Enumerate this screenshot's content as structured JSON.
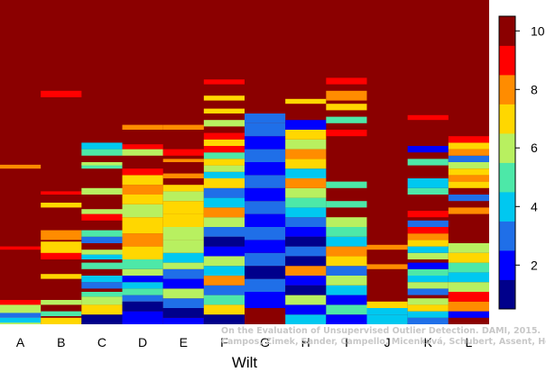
{
  "chart_data": {
    "type": "heatmap",
    "xlabel": "Wilt",
    "categories": [
      "A",
      "B",
      "C",
      "D",
      "E",
      "F",
      "G",
      "H",
      "I",
      "J",
      "K",
      "L"
    ],
    "colorbar": {
      "range": [
        0.5,
        10.5
      ],
      "ticks": [
        "2",
        "4",
        "6",
        "8",
        "10"
      ],
      "colors": [
        "#00008b",
        "#0000ff",
        "#1f6fe8",
        "#00c8f0",
        "#4de8a8",
        "#b8f060",
        "#ffd700",
        "#ff8c00",
        "#ff0000",
        "#8b0000"
      ]
    },
    "columns": [
      {
        "x": "A",
        "bands": [
          [
            0.0,
            0.07,
            6
          ],
          [
            0.005,
            0.02,
            4
          ],
          [
            0.02,
            0.035,
            3
          ],
          [
            0.06,
            0.075,
            9
          ],
          [
            0.23,
            0.24,
            9
          ],
          [
            0.48,
            0.492,
            8
          ]
        ]
      },
      {
        "x": "B",
        "bands": [
          [
            0.0,
            0.02,
            7
          ],
          [
            0.025,
            0.04,
            5
          ],
          [
            0.06,
            0.075,
            6
          ],
          [
            0.14,
            0.155,
            7
          ],
          [
            0.2,
            0.225,
            9
          ],
          [
            0.22,
            0.255,
            7
          ],
          [
            0.26,
            0.29,
            8
          ],
          [
            0.36,
            0.375,
            7
          ],
          [
            0.4,
            0.41,
            9
          ],
          [
            0.7,
            0.72,
            9
          ]
        ]
      },
      {
        "x": "C",
        "bands": [
          [
            0.0,
            0.03,
            1
          ],
          [
            0.03,
            0.06,
            7
          ],
          [
            0.06,
            0.085,
            6
          ],
          [
            0.085,
            0.1,
            5
          ],
          [
            0.11,
            0.13,
            3
          ],
          [
            0.13,
            0.15,
            4
          ],
          [
            0.17,
            0.19,
            5
          ],
          [
            0.2,
            0.215,
            4
          ],
          [
            0.215,
            0.23,
            6
          ],
          [
            0.25,
            0.27,
            3
          ],
          [
            0.27,
            0.29,
            5
          ],
          [
            0.32,
            0.34,
            9
          ],
          [
            0.34,
            0.355,
            6
          ],
          [
            0.4,
            0.42,
            6
          ],
          [
            0.48,
            0.495,
            5
          ],
          [
            0.49,
            0.5,
            6
          ],
          [
            0.52,
            0.54,
            5
          ],
          [
            0.54,
            0.56,
            4
          ]
        ]
      },
      {
        "x": "D",
        "bands": [
          [
            0.0,
            0.04,
            2
          ],
          [
            0.04,
            0.07,
            1
          ],
          [
            0.07,
            0.09,
            3
          ],
          [
            0.09,
            0.11,
            5
          ],
          [
            0.11,
            0.13,
            4
          ],
          [
            0.13,
            0.15,
            2
          ],
          [
            0.15,
            0.17,
            6
          ],
          [
            0.17,
            0.2,
            5
          ],
          [
            0.2,
            0.24,
            7
          ],
          [
            0.24,
            0.28,
            8
          ],
          [
            0.28,
            0.33,
            7
          ],
          [
            0.33,
            0.37,
            6
          ],
          [
            0.37,
            0.4,
            7
          ],
          [
            0.4,
            0.43,
            8
          ],
          [
            0.43,
            0.46,
            7
          ],
          [
            0.46,
            0.48,
            9
          ],
          [
            0.52,
            0.54,
            6
          ],
          [
            0.54,
            0.555,
            9
          ],
          [
            0.6,
            0.615,
            8
          ]
        ]
      },
      {
        "x": "E",
        "bands": [
          [
            0.0,
            0.02,
            2
          ],
          [
            0.02,
            0.05,
            1
          ],
          [
            0.05,
            0.08,
            3
          ],
          [
            0.08,
            0.11,
            6
          ],
          [
            0.11,
            0.14,
            2
          ],
          [
            0.14,
            0.17,
            3
          ],
          [
            0.17,
            0.19,
            6
          ],
          [
            0.19,
            0.22,
            4
          ],
          [
            0.22,
            0.26,
            6
          ],
          [
            0.26,
            0.3,
            6
          ],
          [
            0.3,
            0.34,
            7
          ],
          [
            0.34,
            0.38,
            7
          ],
          [
            0.38,
            0.41,
            6
          ],
          [
            0.41,
            0.43,
            7
          ],
          [
            0.45,
            0.465,
            8
          ],
          [
            0.5,
            0.51,
            8
          ],
          [
            0.52,
            0.54,
            9
          ],
          [
            0.6,
            0.615,
            8
          ]
        ]
      },
      {
        "x": "F",
        "bands": [
          [
            0.0,
            0.03,
            1
          ],
          [
            0.03,
            0.06,
            7
          ],
          [
            0.06,
            0.09,
            5
          ],
          [
            0.09,
            0.12,
            3
          ],
          [
            0.12,
            0.15,
            8
          ],
          [
            0.15,
            0.18,
            4
          ],
          [
            0.18,
            0.21,
            6
          ],
          [
            0.21,
            0.24,
            2
          ],
          [
            0.24,
            0.27,
            1
          ],
          [
            0.27,
            0.3,
            3
          ],
          [
            0.3,
            0.33,
            6
          ],
          [
            0.33,
            0.36,
            8
          ],
          [
            0.36,
            0.39,
            4
          ],
          [
            0.39,
            0.42,
            3
          ],
          [
            0.42,
            0.45,
            7
          ],
          [
            0.45,
            0.47,
            4
          ],
          [
            0.47,
            0.49,
            6
          ],
          [
            0.49,
            0.51,
            7
          ],
          [
            0.51,
            0.53,
            5
          ],
          [
            0.53,
            0.55,
            9
          ],
          [
            0.55,
            0.57,
            7
          ],
          [
            0.57,
            0.59,
            9
          ],
          [
            0.61,
            0.63,
            6
          ],
          [
            0.65,
            0.665,
            7
          ],
          [
            0.69,
            0.705,
            7
          ],
          [
            0.74,
            0.755,
            9
          ]
        ]
      },
      {
        "x": "G",
        "bands": [
          [
            0.0,
            0.05,
            10
          ],
          [
            0.05,
            0.1,
            2
          ],
          [
            0.1,
            0.14,
            3
          ],
          [
            0.14,
            0.18,
            1
          ],
          [
            0.18,
            0.22,
            3
          ],
          [
            0.22,
            0.26,
            2
          ],
          [
            0.26,
            0.3,
            3
          ],
          [
            0.3,
            0.34,
            2
          ],
          [
            0.34,
            0.38,
            3
          ],
          [
            0.38,
            0.42,
            2
          ],
          [
            0.42,
            0.46,
            3
          ],
          [
            0.46,
            0.5,
            2
          ],
          [
            0.5,
            0.54,
            3
          ],
          [
            0.54,
            0.58,
            2
          ],
          [
            0.58,
            0.62,
            3
          ],
          [
            0.62,
            0.65,
            3
          ]
        ]
      },
      {
        "x": "H",
        "bands": [
          [
            0.0,
            0.03,
            4
          ],
          [
            0.03,
            0.06,
            2
          ],
          [
            0.06,
            0.09,
            6
          ],
          [
            0.09,
            0.12,
            1
          ],
          [
            0.12,
            0.15,
            2
          ],
          [
            0.15,
            0.18,
            8
          ],
          [
            0.18,
            0.21,
            1
          ],
          [
            0.21,
            0.24,
            3
          ],
          [
            0.24,
            0.27,
            1
          ],
          [
            0.27,
            0.3,
            2
          ],
          [
            0.3,
            0.33,
            3
          ],
          [
            0.33,
            0.36,
            4
          ],
          [
            0.36,
            0.39,
            5
          ],
          [
            0.39,
            0.42,
            6
          ],
          [
            0.42,
            0.45,
            8
          ],
          [
            0.45,
            0.48,
            4
          ],
          [
            0.48,
            0.51,
            7
          ],
          [
            0.51,
            0.54,
            8
          ],
          [
            0.54,
            0.57,
            6
          ],
          [
            0.57,
            0.6,
            7
          ],
          [
            0.6,
            0.63,
            2
          ],
          [
            0.68,
            0.695,
            7
          ]
        ]
      },
      {
        "x": "I",
        "bands": [
          [
            0.0,
            0.03,
            2
          ],
          [
            0.03,
            0.06,
            5
          ],
          [
            0.06,
            0.09,
            2
          ],
          [
            0.09,
            0.12,
            4
          ],
          [
            0.12,
            0.15,
            6
          ],
          [
            0.15,
            0.18,
            3
          ],
          [
            0.18,
            0.21,
            7
          ],
          [
            0.21,
            0.24,
            8
          ],
          [
            0.24,
            0.27,
            4
          ],
          [
            0.27,
            0.3,
            5
          ],
          [
            0.3,
            0.33,
            6
          ],
          [
            0.36,
            0.38,
            5
          ],
          [
            0.42,
            0.44,
            5
          ],
          [
            0.58,
            0.6,
            9
          ],
          [
            0.62,
            0.64,
            5
          ],
          [
            0.66,
            0.68,
            7
          ],
          [
            0.69,
            0.72,
            8
          ],
          [
            0.74,
            0.76,
            9
          ]
        ]
      },
      {
        "x": "J",
        "bands": [
          [
            0.0,
            0.03,
            4
          ],
          [
            0.03,
            0.05,
            4
          ],
          [
            0.05,
            0.07,
            7
          ],
          [
            0.17,
            0.185,
            8
          ],
          [
            0.23,
            0.245,
            8
          ]
        ]
      },
      {
        "x": "K",
        "bands": [
          [
            0.0,
            0.02,
            3
          ],
          [
            0.02,
            0.04,
            4
          ],
          [
            0.04,
            0.06,
            7
          ],
          [
            0.06,
            0.08,
            6
          ],
          [
            0.09,
            0.11,
            3
          ],
          [
            0.11,
            0.13,
            6
          ],
          [
            0.13,
            0.15,
            4
          ],
          [
            0.15,
            0.17,
            5
          ],
          [
            0.17,
            0.19,
            2
          ],
          [
            0.2,
            0.22,
            6
          ],
          [
            0.22,
            0.24,
            4
          ],
          [
            0.24,
            0.26,
            7
          ],
          [
            0.26,
            0.28,
            8
          ],
          [
            0.28,
            0.3,
            9
          ],
          [
            0.3,
            0.32,
            3
          ],
          [
            0.33,
            0.35,
            9
          ],
          [
            0.4,
            0.42,
            5
          ],
          [
            0.42,
            0.45,
            4
          ],
          [
            0.49,
            0.51,
            5
          ],
          [
            0.53,
            0.55,
            2
          ],
          [
            0.63,
            0.645,
            9
          ]
        ]
      },
      {
        "x": "L",
        "bands": [
          [
            0.0,
            0.02,
            10
          ],
          [
            0.02,
            0.04,
            2
          ],
          [
            0.04,
            0.07,
            8
          ],
          [
            0.07,
            0.1,
            9
          ],
          [
            0.1,
            0.13,
            6
          ],
          [
            0.13,
            0.16,
            4
          ],
          [
            0.16,
            0.19,
            5
          ],
          [
            0.19,
            0.22,
            7
          ],
          [
            0.22,
            0.25,
            6
          ],
          [
            0.34,
            0.36,
            8
          ],
          [
            0.38,
            0.4,
            3
          ],
          [
            0.42,
            0.44,
            7
          ],
          [
            0.44,
            0.46,
            8
          ],
          [
            0.46,
            0.48,
            7
          ],
          [
            0.48,
            0.5,
            6
          ],
          [
            0.5,
            0.52,
            3
          ],
          [
            0.52,
            0.54,
            8
          ],
          [
            0.54,
            0.56,
            7
          ],
          [
            0.56,
            0.58,
            9
          ]
        ]
      }
    ],
    "credit_lines": [
      "On the Evaluation of Unsupervised Outlier Detection. DAMI, 2015.",
      "Campos, Zimek, Sander, Campello, Micenková, Schubert, Assent, Houle"
    ]
  }
}
